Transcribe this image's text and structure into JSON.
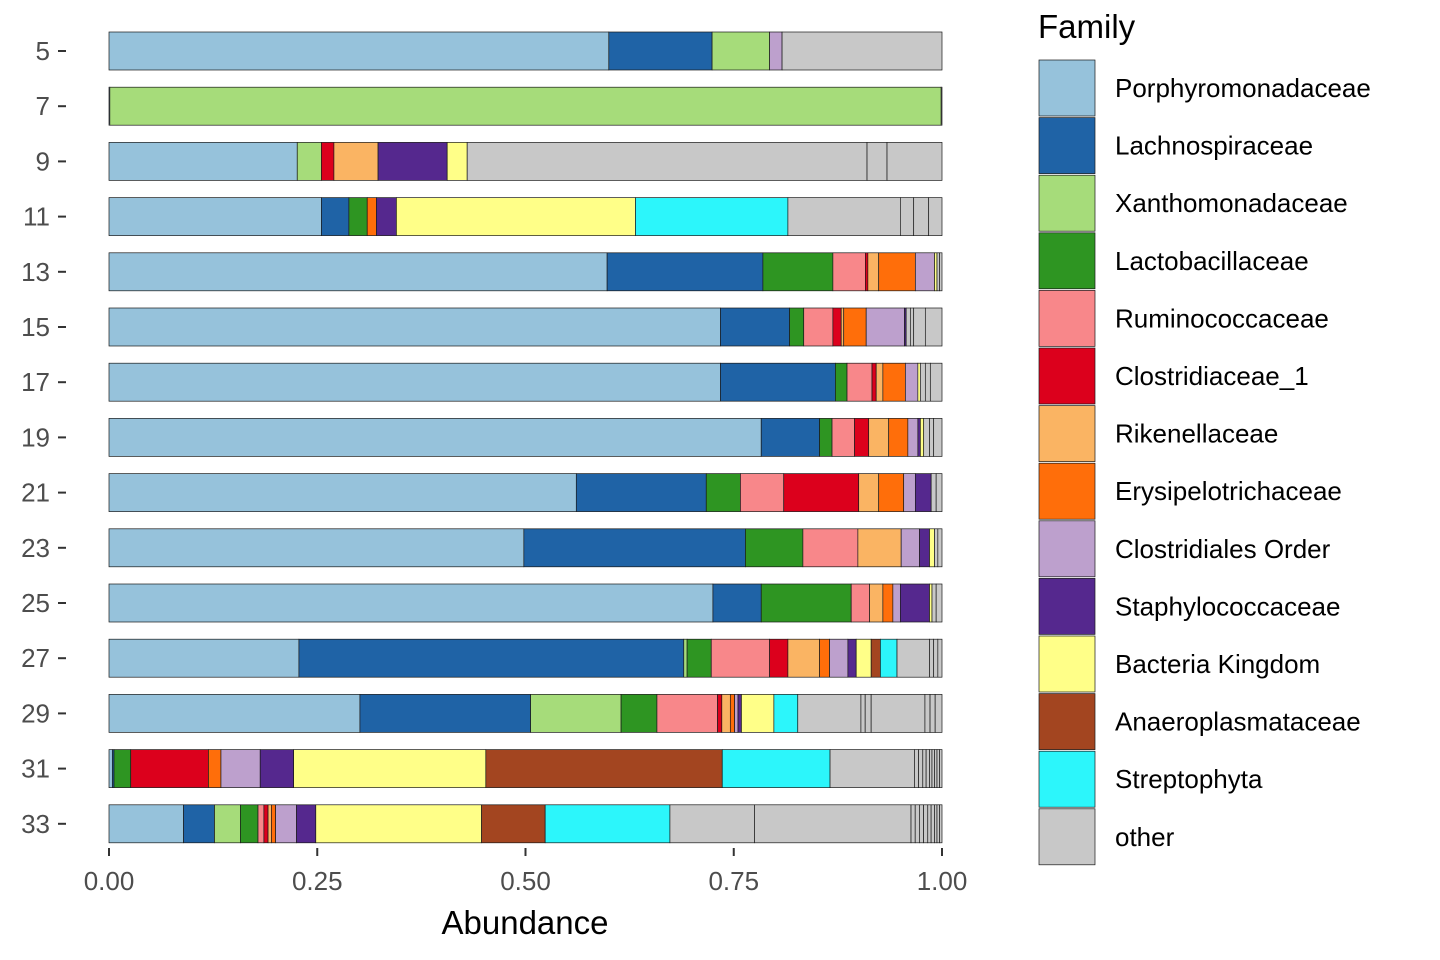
{
  "chart_data": {
    "type": "bar",
    "orientation": "horizontal",
    "stacked": true,
    "xlabel": "Abundance",
    "ylabel": "",
    "xlim": [
      0,
      1
    ],
    "x_ticks": [
      "0.00",
      "0.25",
      "0.50",
      "0.75",
      "1.00"
    ],
    "grid": false,
    "legend_position": "right",
    "legend_title": "Family",
    "categories": [
      "5",
      "7",
      "9",
      "11",
      "13",
      "15",
      "17",
      "19",
      "21",
      "23",
      "25",
      "27",
      "29",
      "31",
      "33"
    ],
    "families": [
      {
        "name": "Porphyromonadaceae",
        "color": "#96c2db"
      },
      {
        "name": "Lachnospiraceae",
        "color": "#1f63a6"
      },
      {
        "name": "Xanthomonadaceae",
        "color": "#a6dc7a"
      },
      {
        "name": "Lactobacillaceae",
        "color": "#2e9522"
      },
      {
        "name": "Ruminococcaceae",
        "color": "#f8878a"
      },
      {
        "name": "Clostridiaceae_1",
        "color": "#dc001c"
      },
      {
        "name": "Rikenellaceae",
        "color": "#fab463"
      },
      {
        "name": "Erysipelotrichaceae",
        "color": "#ff6e0a"
      },
      {
        "name": "Clostridiales Order",
        "color": "#bda0cd"
      },
      {
        "name": "Staphylococcaceae",
        "color": "#55288e"
      },
      {
        "name": "Bacteria Kingdom",
        "color": "#ffff88"
      },
      {
        "name": "Anaeroplasmataceae",
        "color": "#a34520"
      },
      {
        "name": "Streptophyta",
        "color": "#2cf6fb"
      },
      {
        "name": "other",
        "color": "#c8c8c8"
      }
    ],
    "samples": [
      {
        "label": "5",
        "segments": [
          [
            "Porphyromonadaceae",
            0.6
          ],
          [
            "Lachnospiraceae",
            0.124
          ],
          [
            "Xanthomonadaceae",
            0.069
          ],
          [
            "Clostridiales Order",
            0.015
          ],
          [
            "other",
            0.192
          ]
        ]
      },
      {
        "label": "7",
        "segments": [
          [
            "Porphyromonadaceae",
            0.001
          ],
          [
            "Xanthomonadaceae",
            0.998
          ],
          [
            "other",
            0.001
          ]
        ]
      },
      {
        "label": "9",
        "segments": [
          [
            "Porphyromonadaceae",
            0.226
          ],
          [
            "Xanthomonadaceae",
            0.029
          ],
          [
            "Clostridiaceae_1",
            0.015
          ],
          [
            "Rikenellaceae",
            0.053
          ],
          [
            "Staphylococcaceae",
            0.083
          ],
          [
            "Bacteria Kingdom",
            0.024
          ],
          [
            "other",
            0.48
          ],
          [
            "other",
            0.024
          ],
          [
            "other",
            0.066
          ]
        ]
      },
      {
        "label": "11",
        "segments": [
          [
            "Porphyromonadaceae",
            0.255
          ],
          [
            "Lachnospiraceae",
            0.033
          ],
          [
            "Lactobacillaceae",
            0.022
          ],
          [
            "Erysipelotrichaceae",
            0.011
          ],
          [
            "Staphylococcaceae",
            0.024
          ],
          [
            "Bacteria Kingdom",
            0.287
          ],
          [
            "Streptophyta",
            0.183
          ],
          [
            "other",
            0.135
          ],
          [
            "other",
            0.016
          ],
          [
            "other",
            0.018
          ],
          [
            "other",
            0.016
          ]
        ]
      },
      {
        "label": "13",
        "segments": [
          [
            "Porphyromonadaceae",
            0.598
          ],
          [
            "Lachnospiraceae",
            0.187
          ],
          [
            "Lactobacillaceae",
            0.084
          ],
          [
            "Ruminococcaceae",
            0.039
          ],
          [
            "Clostridiaceae_1",
            0.003
          ],
          [
            "Rikenellaceae",
            0.013
          ],
          [
            "Erysipelotrichaceae",
            0.044
          ],
          [
            "Clostridiales Order",
            0.023
          ],
          [
            "Bacteria Kingdom",
            0.003
          ],
          [
            "other",
            0.003
          ],
          [
            "other",
            0.003
          ]
        ]
      },
      {
        "label": "15",
        "segments": [
          [
            "Porphyromonadaceae",
            0.734
          ],
          [
            "Lachnospiraceae",
            0.083
          ],
          [
            "Lactobacillaceae",
            0.017
          ],
          [
            "Ruminococcaceae",
            0.035
          ],
          [
            "Clostridiaceae_1",
            0.01
          ],
          [
            "Rikenellaceae",
            0.003
          ],
          [
            "Erysipelotrichaceae",
            0.027
          ],
          [
            "Clostridiales Order",
            0.046
          ],
          [
            "Staphylococcaceae",
            0.002
          ],
          [
            "other",
            0.005
          ],
          [
            "other",
            0.004
          ],
          [
            "other",
            0.014
          ],
          [
            "other",
            0.02
          ]
        ]
      },
      {
        "label": "17",
        "segments": [
          [
            "Porphyromonadaceae",
            0.734
          ],
          [
            "Lachnospiraceae",
            0.138
          ],
          [
            "Lactobacillaceae",
            0.014
          ],
          [
            "Ruminococcaceae",
            0.03
          ],
          [
            "Clostridiaceae_1",
            0.005
          ],
          [
            "Rikenellaceae",
            0.008
          ],
          [
            "Erysipelotrichaceae",
            0.027
          ],
          [
            "Clostridiales Order",
            0.015
          ],
          [
            "Bacteria Kingdom",
            0.003
          ],
          [
            "other",
            0.006
          ],
          [
            "other",
            0.006
          ],
          [
            "other",
            0.014
          ]
        ]
      },
      {
        "label": "19",
        "segments": [
          [
            "Porphyromonadaceae",
            0.783
          ],
          [
            "Lachnospiraceae",
            0.07
          ],
          [
            "Lactobacillaceae",
            0.015
          ],
          [
            "Ruminococcaceae",
            0.027
          ],
          [
            "Clostridiaceae_1",
            0.017
          ],
          [
            "Rikenellaceae",
            0.024
          ],
          [
            "Erysipelotrichaceae",
            0.023
          ],
          [
            "Clostridiales Order",
            0.012
          ],
          [
            "Staphylococcaceae",
            0.003
          ],
          [
            "Bacteria Kingdom",
            0.004
          ],
          [
            "other",
            0.007
          ],
          [
            "other",
            0.005
          ],
          [
            "other",
            0.01
          ]
        ]
      },
      {
        "label": "21",
        "segments": [
          [
            "Porphyromonadaceae",
            0.561
          ],
          [
            "Lachnospiraceae",
            0.156
          ],
          [
            "Lactobacillaceae",
            0.041
          ],
          [
            "Ruminococcaceae",
            0.052
          ],
          [
            "Clostridiaceae_1",
            0.09
          ],
          [
            "Rikenellaceae",
            0.024
          ],
          [
            "Erysipelotrichaceae",
            0.03
          ],
          [
            "Clostridiales Order",
            0.014
          ],
          [
            "Staphylococcaceae",
            0.019
          ],
          [
            "other",
            0.006
          ],
          [
            "other",
            0.007
          ]
        ]
      },
      {
        "label": "23",
        "segments": [
          [
            "Porphyromonadaceae",
            0.498
          ],
          [
            "Lachnospiraceae",
            0.266
          ],
          [
            "Lactobacillaceae",
            0.069
          ],
          [
            "Ruminococcaceae",
            0.066
          ],
          [
            "Rikenellaceae",
            0.052
          ],
          [
            "Clostridiales Order",
            0.022
          ],
          [
            "Staphylococcaceae",
            0.012
          ],
          [
            "Bacteria Kingdom",
            0.006
          ],
          [
            "other",
            0.004
          ],
          [
            "other",
            0.005
          ]
        ]
      },
      {
        "label": "25",
        "segments": [
          [
            "Porphyromonadaceae",
            0.725
          ],
          [
            "Lachnospiraceae",
            0.058
          ],
          [
            "Lactobacillaceae",
            0.108
          ],
          [
            "Ruminococcaceae",
            0.022
          ],
          [
            "Rikenellaceae",
            0.016
          ],
          [
            "Erysipelotrichaceae",
            0.012
          ],
          [
            "Clostridiales Order",
            0.009
          ],
          [
            "Staphylococcaceae",
            0.035
          ],
          [
            "Bacteria Kingdom",
            0.003
          ],
          [
            "other",
            0.005
          ],
          [
            "other",
            0.007
          ]
        ]
      },
      {
        "label": "27",
        "segments": [
          [
            "Porphyromonadaceae",
            0.228
          ],
          [
            "Lachnospiraceae",
            0.462
          ],
          [
            "Xanthomonadaceae",
            0.004
          ],
          [
            "Lactobacillaceae",
            0.029
          ],
          [
            "Ruminococcaceae",
            0.07
          ],
          [
            "Clostridiaceae_1",
            0.022
          ],
          [
            "Rikenellaceae",
            0.038
          ],
          [
            "Erysipelotrichaceae",
            0.012
          ],
          [
            "Clostridiales Order",
            0.022
          ],
          [
            "Staphylococcaceae",
            0.01
          ],
          [
            "Bacteria Kingdom",
            0.018
          ],
          [
            "Anaeroplasmataceae",
            0.011
          ],
          [
            "Streptophyta",
            0.02
          ],
          [
            "other",
            0.039
          ],
          [
            "other",
            0.005
          ],
          [
            "other",
            0.005
          ],
          [
            "other",
            0.005
          ]
        ]
      },
      {
        "label": "29",
        "segments": [
          [
            "Porphyromonadaceae",
            0.294
          ],
          [
            "Lachnospiraceae",
            0.2
          ],
          [
            "Xanthomonadaceae",
            0.106
          ],
          [
            "Lactobacillaceae",
            0.042
          ],
          [
            "Ruminococcaceae",
            0.071
          ],
          [
            "Clostridiaceae_1",
            0.005
          ],
          [
            "Rikenellaceae",
            0.01
          ],
          [
            "Erysipelotrichaceae",
            0.005
          ],
          [
            "Clostridiales Order",
            0.004
          ],
          [
            "Staphylococcaceae",
            0.004
          ],
          [
            "Bacteria Kingdom",
            0.038
          ],
          [
            "Streptophyta",
            0.028
          ],
          [
            "other",
            0.074
          ],
          [
            "other",
            0.005
          ],
          [
            "other",
            0.007
          ],
          [
            "other",
            0.063
          ],
          [
            "other",
            0.006
          ],
          [
            "other",
            0.006
          ],
          [
            "other",
            0.008
          ]
        ]
      },
      {
        "label": "31",
        "segments": [
          [
            "Porphyromonadaceae",
            0.004
          ],
          [
            "Lachnospiraceae",
            0.002
          ],
          [
            "Lactobacillaceae",
            0.02
          ],
          [
            "Clostridiaceae_1",
            0.093
          ],
          [
            "Erysipelotrichaceae",
            0.015
          ],
          [
            "Clostridiales Order",
            0.047
          ],
          [
            "Staphylococcaceae",
            0.04
          ],
          [
            "Bacteria Kingdom",
            0.23
          ],
          [
            "Anaeroplasmataceae",
            0.283
          ],
          [
            "Streptophyta",
            0.129
          ],
          [
            "other",
            0.101
          ],
          [
            "other",
            0.005
          ],
          [
            "other",
            0.005
          ],
          [
            "other",
            0.004
          ],
          [
            "other",
            0.004
          ],
          [
            "other",
            0.003
          ],
          [
            "other",
            0.003
          ],
          [
            "other",
            0.003
          ],
          [
            "other",
            0.003
          ],
          [
            "other",
            0.003
          ]
        ]
      },
      {
        "label": "33",
        "segments": [
          [
            "Porphyromonadaceae",
            0.089
          ],
          [
            "Lachnospiraceae",
            0.037
          ],
          [
            "Xanthomonadaceae",
            0.031
          ],
          [
            "Lactobacillaceae",
            0.021
          ],
          [
            "Ruminococcaceae",
            0.007
          ],
          [
            "Clostridiaceae_1",
            0.005
          ],
          [
            "Rikenellaceae",
            0.004
          ],
          [
            "Erysipelotrichaceae",
            0.005
          ],
          [
            "Clostridiales Order",
            0.025
          ],
          [
            "Staphylococcaceae",
            0.023
          ],
          [
            "Bacteria Kingdom",
            0.198
          ],
          [
            "Anaeroplasmataceae",
            0.076
          ],
          [
            "Streptophyta",
            0.149
          ],
          [
            "other",
            0.101
          ],
          [
            "other",
            0.187
          ],
          [
            "other",
            0.005
          ],
          [
            "other",
            0.005
          ],
          [
            "other",
            0.005
          ],
          [
            "other",
            0.005
          ],
          [
            "other",
            0.004
          ],
          [
            "other",
            0.004
          ],
          [
            "other",
            0.003
          ],
          [
            "other",
            0.003
          ],
          [
            "other",
            0.003
          ]
        ]
      }
    ]
  }
}
